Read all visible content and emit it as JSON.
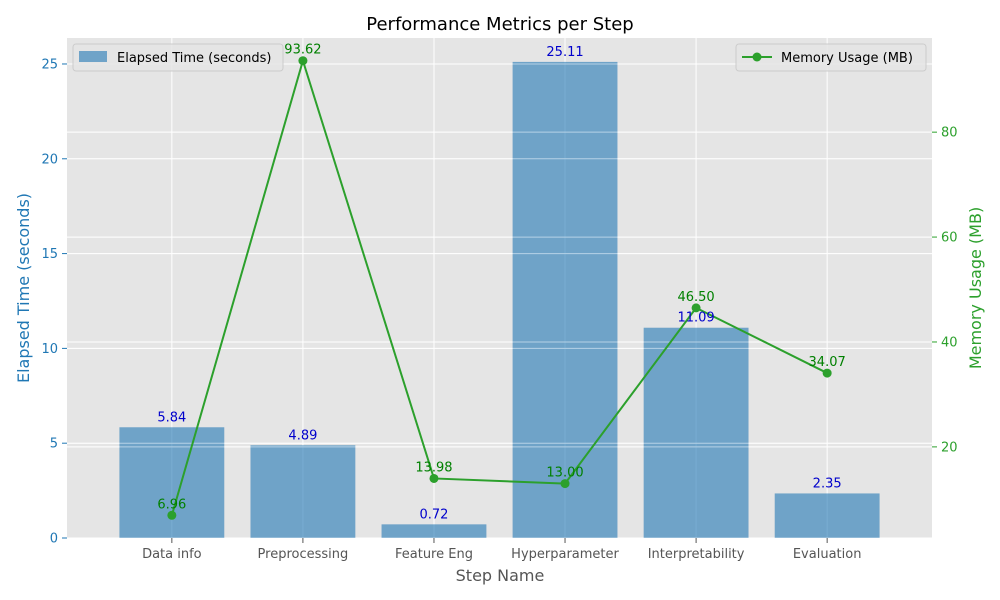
{
  "chart_data": {
    "type": "bar",
    "title": "Performance Metrics per Step",
    "xlabel": "Step Name",
    "ylabel": "Elapsed Time (seconds)",
    "y2label": "Memory Usage (MB)",
    "categories": [
      "Data info",
      "Preprocessing",
      "Feature Eng",
      "Hyperparameter",
      "Interpretability",
      "Evaluation"
    ],
    "ylim": [
      0,
      26.37
    ],
    "y2lim": [
      2.63,
      97.95
    ],
    "yticks": [
      0,
      5,
      10,
      15,
      20,
      25
    ],
    "y2ticks": [
      20,
      40,
      60,
      80
    ],
    "grid": true,
    "series": [
      {
        "name": "Elapsed Time (seconds)",
        "type": "bar",
        "axis": "left",
        "values": [
          5.84,
          4.89,
          0.72,
          25.11,
          11.09,
          2.35
        ],
        "labels": [
          "5.84",
          "4.89",
          "0.72",
          "25.11",
          "11.09",
          "2.35"
        ],
        "color": "#1f77b4",
        "label_color": "#0000cc"
      },
      {
        "name": "Memory Usage (MB)",
        "type": "line",
        "axis": "right",
        "values": [
          6.96,
          93.62,
          13.98,
          13.0,
          46.5,
          34.07
        ],
        "labels": [
          "6.96",
          "93.62",
          "13.98",
          "13.00",
          "46.50",
          "34.07"
        ],
        "color": "#2ca02c",
        "label_color": "#008000"
      }
    ],
    "legend_left": "top-left",
    "legend_right": "top-right",
    "colors": {
      "plot_bg": "#e5e5e5",
      "grid": "#ffffff",
      "left_axis": "#1f77b4",
      "right_axis": "#2ca02c",
      "tick_text": "#555555"
    }
  }
}
